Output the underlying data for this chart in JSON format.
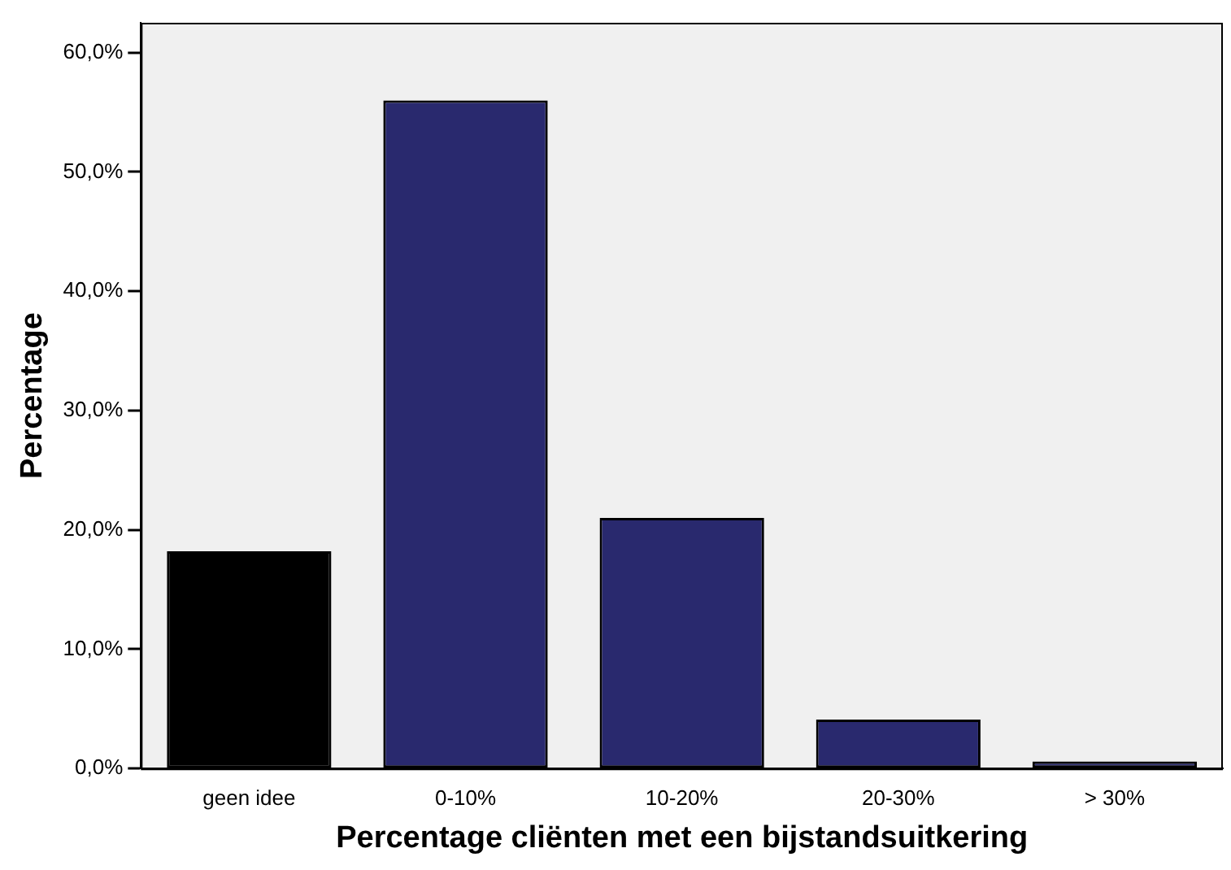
{
  "chart_data": {
    "type": "bar",
    "xlabel": "Percentage cliënten met een bijstandsuitkering",
    "ylabel": "Percentage",
    "categories": [
      "geen idee",
      "0-10%",
      "10-20%",
      "20-30%",
      "> 30%"
    ],
    "values": [
      18.2,
      56.0,
      21.0,
      4.1,
      0.6
    ],
    "colors": [
      "#000000",
      "#29296e",
      "#29296e",
      "#29296e",
      "#29296e"
    ],
    "ylim": [
      0,
      62.5
    ],
    "yticks": [
      {
        "value": 0,
        "label": "0,0%"
      },
      {
        "value": 10,
        "label": "10,0%"
      },
      {
        "value": 20,
        "label": "20,0%"
      },
      {
        "value": 30,
        "label": "30,0%"
      },
      {
        "value": 40,
        "label": "40,0%"
      },
      {
        "value": 50,
        "label": "50,0%"
      },
      {
        "value": 60,
        "label": "60,0%"
      }
    ],
    "grid": false,
    "legend": false
  }
}
